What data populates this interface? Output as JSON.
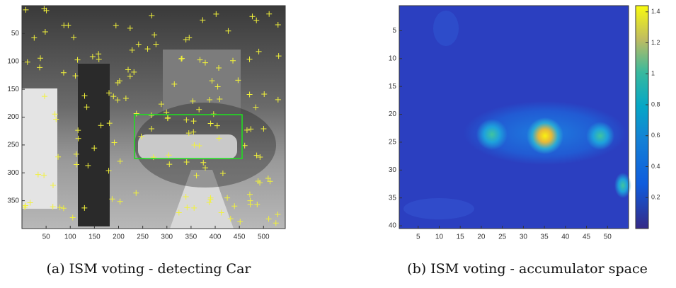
{
  "figure": {
    "panels": [
      {
        "caption": "(a) ISM voting - detecting Car",
        "xlim": [
          0,
          545
        ],
        "ylim": [
          0,
          400
        ],
        "xticks": [
          50,
          100,
          150,
          200,
          250,
          300,
          350,
          400,
          450,
          500
        ],
        "yticks": [
          50,
          100,
          150,
          200,
          250,
          300,
          350
        ]
      },
      {
        "caption": "(b) ISM voting - accumulator space",
        "xlim": [
          0.5,
          55
        ],
        "ylim": [
          0.5,
          40.5
        ],
        "xticks": [
          5,
          10,
          15,
          20,
          25,
          30,
          35,
          40,
          45,
          50
        ],
        "yticks": [
          5,
          10,
          15,
          20,
          25,
          30,
          35,
          40
        ],
        "colorbar": {
          "lim": [
            0,
            1.44
          ],
          "ticks": [
            0.2,
            0.4,
            0.6,
            0.8,
            1,
            1.2,
            1.4
          ]
        }
      }
    ]
  }
}
